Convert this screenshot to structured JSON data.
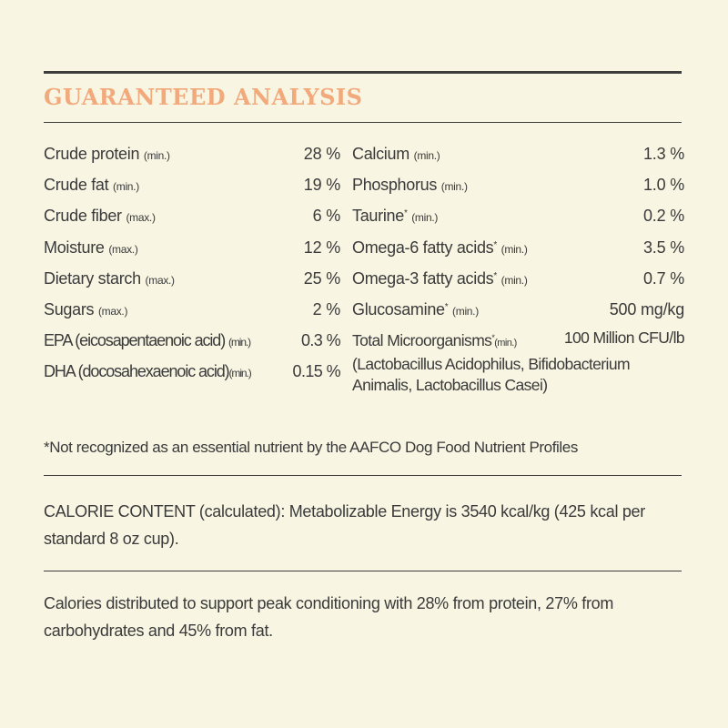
{
  "title": "GUARANTEED ANALYSIS",
  "left_rows": [
    {
      "label": "Crude protein",
      "sup": "",
      "qualifier": "(min.)",
      "value": "28 %"
    },
    {
      "label": "Crude fat",
      "sup": "",
      "qualifier": "(min.)",
      "value": "19 %"
    },
    {
      "label": "Crude fiber",
      "sup": "",
      "qualifier": "(max.)",
      "value": "6 %"
    },
    {
      "label": "Moisture",
      "sup": "",
      "qualifier": "(max.)",
      "value": "12 %"
    },
    {
      "label": "Dietary starch",
      "sup": "",
      "qualifier": "(max.)",
      "value": "25 %"
    },
    {
      "label": "Sugars",
      "sup": "",
      "qualifier": "(max.)",
      "value": "2 %"
    },
    {
      "label": "EPA (eicosapentaenoic acid)",
      "sup": "",
      "qualifier": "(min.)",
      "value": "0.3 %"
    },
    {
      "label": "DHA (docosahexaenoic acid)",
      "sup": "",
      "qualifier": "(min.)",
      "value": "0.15 %"
    }
  ],
  "right_rows": [
    {
      "label": "Calcium",
      "sup": "",
      "qualifier": "(min.)",
      "value": "1.3 %"
    },
    {
      "label": "Phosphorus",
      "sup": "",
      "qualifier": "(min.)",
      "value": "1.0 %"
    },
    {
      "label": "Taurine",
      "sup": "*",
      "qualifier": "(min.)",
      "value": "0.2 %"
    },
    {
      "label": "Omega-6 fatty acids",
      "sup": "*",
      "qualifier": "(min.)",
      "value": "3.5 %"
    },
    {
      "label": "Omega-3 fatty acids",
      "sup": "*",
      "qualifier": "(min.)",
      "value": "0.7 %"
    },
    {
      "label": "Glucosamine",
      "sup": "*",
      "qualifier": "(min.)",
      "value": "500 mg/kg"
    }
  ],
  "microorganisms": {
    "label": "Total Microorganisms",
    "sup": "*",
    "qualifier": "(min.)",
    "value": "100 Million CFU/lb",
    "line2": "(Lactobacillus Acidophilus, Bifidobacterium",
    "line3": "Animalis, Lactobacillus Casei)"
  },
  "footnote": "*Not recognized as an essential nutrient by the AAFCO Dog Food Nutrient Profiles",
  "calorie_content": "CALORIE CONTENT (calculated): Metabolizable Energy is 3540 kcal/kg (425 kcal per standard 8 oz cup).",
  "calorie_distribution": "Calories distributed to support peak conditioning with 28% from protein, 27% from carbohydrates and 45% from fat.",
  "colors": {
    "background": "#f8f5e3",
    "title": "#f2a97c",
    "text": "#3a3a3a",
    "rule": "#3d3d3d"
  }
}
